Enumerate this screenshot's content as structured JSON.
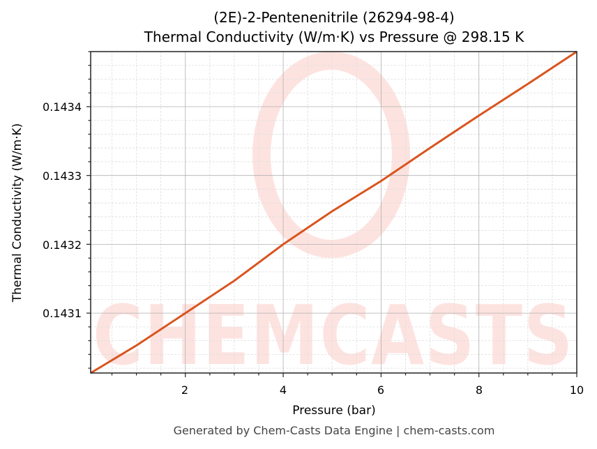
{
  "title": {
    "line1": "(2E)-2-Pentenenitrile (26294-98-4)",
    "line2": "Thermal Conductivity (W/m·K) vs Pressure @ 298.15 K"
  },
  "axes": {
    "xlabel": "Pressure (bar)",
    "ylabel": "Thermal Conductivity (W/m·K)",
    "xticks": [
      "2",
      "4",
      "6",
      "8",
      "10"
    ],
    "yticks": [
      "0.1431",
      "0.1432",
      "0.1433",
      "0.1434"
    ]
  },
  "watermark": {
    "text": "CHEMCASTS"
  },
  "footer": {
    "text": "Generated by Chem-Casts Data Engine | chem-casts.com"
  },
  "colors": {
    "line": "#d9541e",
    "watermark": "#fde3e0",
    "grid_major": "#b0b0b0",
    "grid_minor": "#dddddd"
  },
  "chart_data": {
    "type": "line",
    "title": "(2E)-2-Pentenenitrile (26294-98-4) Thermal Conductivity (W/m·K) vs Pressure @ 298.15 K",
    "xlabel": "Pressure (bar)",
    "ylabel": "Thermal Conductivity (W/m·K)",
    "xlim": [
      0.065,
      10
    ],
    "ylim": [
      0.143013,
      0.14348
    ],
    "grid": true,
    "legend": null,
    "series": [
      {
        "name": "Thermal Conductivity",
        "x": [
          0.065,
          1,
          2,
          3,
          4,
          5,
          6,
          7,
          8,
          9,
          10
        ],
        "y": [
          0.143013,
          0.143053,
          0.1431,
          0.143147,
          0.1432,
          0.143248,
          0.143292,
          0.14334,
          0.143387,
          0.143433,
          0.14348
        ]
      }
    ]
  }
}
